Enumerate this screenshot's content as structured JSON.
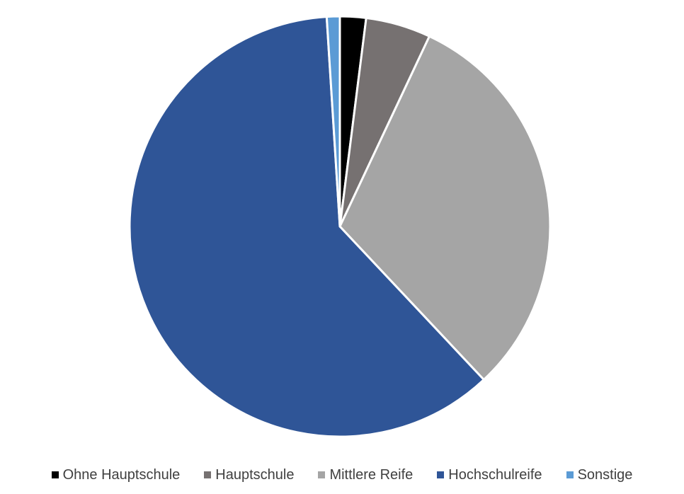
{
  "chart_data": {
    "type": "pie",
    "title": "",
    "categories": [
      "Ohne Hauptschule",
      "Hauptschule",
      "Mittlere Reife",
      "Hochschulreife",
      "Sonstige"
    ],
    "values": [
      2.0,
      5.0,
      31.0,
      61.0,
      1.0
    ],
    "value_unit": "percent (estimated share)",
    "colors": [
      "#000000",
      "#767171",
      "#A5A5A5",
      "#2F5597",
      "#5B9BD5"
    ],
    "start_angle": "12 o'clock",
    "direction": "clockwise",
    "legend_position": "bottom",
    "grid": false
  }
}
